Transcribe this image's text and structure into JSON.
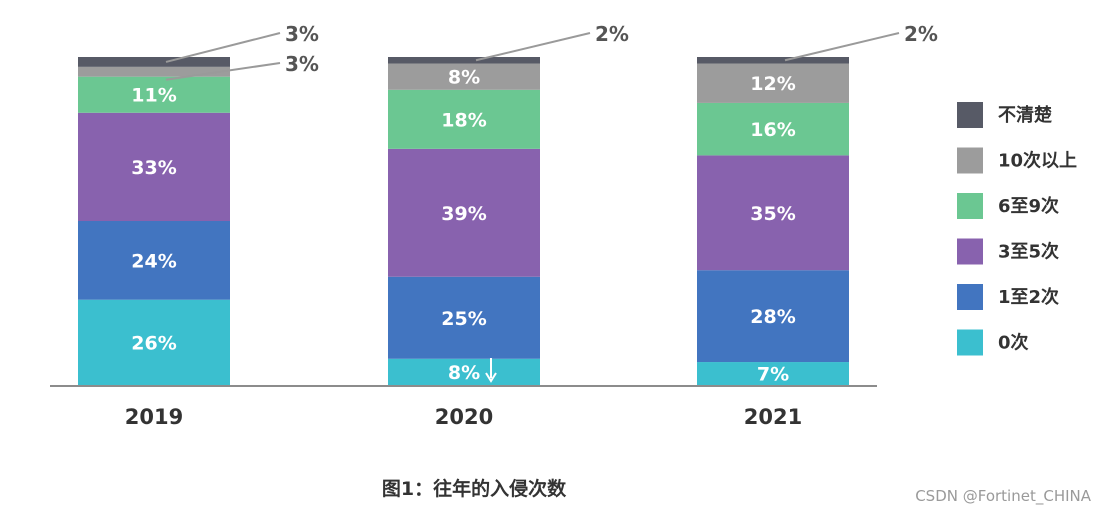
{
  "chart_data": {
    "type": "bar",
    "stacked": true,
    "categories": [
      "2019",
      "2020",
      "2021"
    ],
    "series": [
      {
        "name": "0次",
        "color": "#3bbfcf",
        "values": [
          26,
          8,
          7
        ]
      },
      {
        "name": "1至2次",
        "color": "#4275c0",
        "values": [
          24,
          25,
          28
        ]
      },
      {
        "name": "3至5次",
        "color": "#8862ae",
        "values": [
          33,
          39,
          35
        ]
      },
      {
        "name": "6至9次",
        "color": "#6bc792",
        "values": [
          11,
          18,
          16
        ]
      },
      {
        "name": "10次以上",
        "color": "#9c9c9c",
        "values": [
          3,
          8,
          12
        ]
      },
      {
        "name": "不清楚",
        "color": "#575a66",
        "values": [
          3,
          2,
          2
        ]
      }
    ],
    "data_labels": [
      [
        "26%",
        "24%",
        "33%",
        "11%",
        "3%",
        "3%"
      ],
      [
        "8%",
        "25%",
        "39%",
        "18%",
        "8%",
        "2%"
      ],
      [
        "7%",
        "28%",
        "35%",
        "16%",
        "12%",
        "2%"
      ]
    ],
    "legend_placement": "right",
    "title": "图1：往年的入侵次数",
    "xlabel": "",
    "ylabel": "",
    "ylim": [
      0,
      100
    ],
    "grid": false
  },
  "watermark": "CSDN @Fortinet_CHINA"
}
